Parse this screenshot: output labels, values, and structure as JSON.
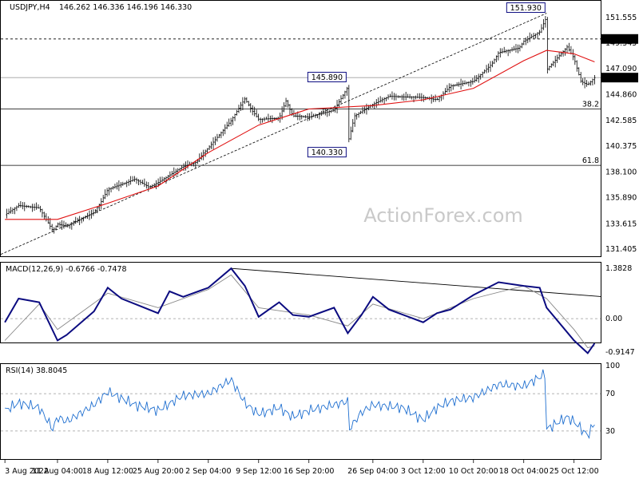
{
  "header": {
    "symbol": "USDJPY,H4",
    "ohlc": "146.262 146.336 146.196 146.330"
  },
  "watermark": "ActionForex.com",
  "colors": {
    "candle": "#000000",
    "ma": "#e01010",
    "macd_line": "#0b0b80",
    "macd_signal": "#888888",
    "rsi": "#1f6fd0",
    "trendline": "#000000",
    "price_badge": "#000000",
    "label_box_border": "#0b0b80"
  },
  "chart_data": [
    {
      "type": "candlestick",
      "title": "USDJPY,H4",
      "y_ticks": [
        "151.555",
        "149.345",
        "147.090",
        "144.860",
        "142.585",
        "140.375",
        "138.100",
        "135.890",
        "133.615",
        "131.405"
      ],
      "y_range": [
        131.0,
        152.8
      ],
      "x_ticks": [
        "3 Aug 2022",
        "11 Aug 04:00",
        "18 Aug 12:00",
        "25 Aug 20:00",
        "2 Sep 04:00",
        "9 Sep 12:00",
        "16 Sep 20:00",
        "26 Sep 04:00",
        "3 Oct 12:00",
        "10 Oct 20:00",
        "18 Oct 04:00",
        "25 Oct 12:00"
      ],
      "approx_close_path": [
        [
          "3 Aug 2022",
          134.4
        ],
        [
          "5 Aug",
          135.2
        ],
        [
          "8 Aug",
          135.0
        ],
        [
          "10 Aug",
          133.0
        ],
        [
          "11 Aug 04:00",
          133.6
        ],
        [
          "12 Aug",
          133.4
        ],
        [
          "16 Aug",
          134.6
        ],
        [
          "17 Aug",
          135.5
        ],
        [
          "18 Aug 12:00",
          136.6
        ],
        [
          "22 Aug",
          137.5
        ],
        [
          "24 Aug",
          136.8
        ],
        [
          "25 Aug 20:00",
          137.2
        ],
        [
          "29 Aug",
          138.6
        ],
        [
          "31 Aug",
          139.0
        ],
        [
          "1 Sep",
          139.8
        ],
        [
          "2 Sep 04:00",
          140.2
        ],
        [
          "5 Sep",
          142.6
        ],
        [
          "7 Sep",
          144.5
        ],
        [
          "8 Sep",
          143.5
        ],
        [
          "9 Sep 12:00",
          142.7
        ],
        [
          "12 Sep",
          142.8
        ],
        [
          "13 Sep",
          144.3
        ],
        [
          "14 Sep",
          143.0
        ],
        [
          "16 Sep 20:00",
          142.9
        ],
        [
          "20 Sep",
          143.5
        ],
        [
          "22 Sep",
          145.5
        ],
        [
          "22 Sep 12:00",
          140.6
        ],
        [
          "23 Sep",
          143.0
        ],
        [
          "26 Sep 04:00",
          144.0
        ],
        [
          "28 Sep",
          144.7
        ],
        [
          "3 Oct 12:00",
          144.6
        ],
        [
          "5 Oct",
          144.4
        ],
        [
          "6 Oct",
          145.0
        ],
        [
          "7 Oct",
          145.6
        ],
        [
          "10 Oct 20:00",
          146.0
        ],
        [
          "13 Oct",
          147.5
        ],
        [
          "14 Oct",
          148.5
        ],
        [
          "17 Oct",
          148.9
        ],
        [
          "18 Oct 04:00",
          149.5
        ],
        [
          "20 Oct",
          150.3
        ],
        [
          "21 Oct",
          151.6
        ],
        [
          "21 Oct 12:00",
          147.0
        ],
        [
          "24 Oct",
          149.0
        ],
        [
          "25 Oct 12:00",
          148.0
        ],
        [
          "26 Oct",
          146.0
        ],
        [
          "27 Oct",
          145.7
        ],
        [
          "28 Oct",
          146.33
        ]
      ],
      "moving_average_path": [
        [
          "3 Aug 2022",
          134.0
        ],
        [
          "11 Aug 04:00",
          134.0
        ],
        [
          "18 Aug 12:00",
          135.4
        ],
        [
          "25 Aug 20:00",
          136.9
        ],
        [
          "2 Sep 04:00",
          139.8
        ],
        [
          "9 Sep 12:00",
          142.2
        ],
        [
          "16 Sep 20:00",
          143.6
        ],
        [
          "26 Sep 04:00",
          143.9
        ],
        [
          "3 Oct 12:00",
          144.4
        ],
        [
          "10 Oct 20:00",
          145.4
        ],
        [
          "18 Oct 04:00",
          147.8
        ],
        [
          "21 Oct",
          148.7
        ],
        [
          "25 Oct 12:00",
          148.4
        ],
        [
          "28 Oct",
          147.7
        ]
      ],
      "horizontal_levels": [
        {
          "value": 149.69,
          "style": "dashed",
          "label": "149.690"
        },
        {
          "value": 146.33,
          "style": "solid-gray",
          "label": "146.330"
        },
        {
          "value": 143.6,
          "style": "solid",
          "label": "38.2"
        },
        {
          "value": 138.7,
          "style": "solid",
          "label": "61.8"
        }
      ],
      "annotations": [
        {
          "label": "151.930",
          "at": "21 Oct",
          "value": 151.93
        },
        {
          "label": "145.890",
          "at": "22 Sep",
          "value": 145.89
        },
        {
          "label": "140.330",
          "at": "22 Sep 12:00",
          "value": 140.33
        }
      ],
      "trendline": [
        [
          "25 Aug 20:00",
          137.0
        ],
        [
          "21 Oct",
          151.93
        ]
      ]
    },
    {
      "type": "line",
      "title": "MACD(12,26,9) -0.6766 -0.7478",
      "y_ticks": [
        "1.3828",
        "0.00",
        "-0.9147"
      ],
      "y_range": [
        -1.05,
        1.45
      ],
      "series": [
        {
          "name": "MACD",
          "values": [
            [
              "3 Aug 2022",
              -0.1
            ],
            [
              "5 Aug",
              0.55
            ],
            [
              "8 Aug",
              0.45
            ],
            [
              "11 Aug 04:00",
              -0.6
            ],
            [
              "12 Aug",
              -0.45
            ],
            [
              "16 Aug",
              0.2
            ],
            [
              "18 Aug 12:00",
              0.85
            ],
            [
              "20 Aug",
              0.55
            ],
            [
              "25 Aug 20:00",
              0.15
            ],
            [
              "27 Aug",
              0.75
            ],
            [
              "29 Aug",
              0.6
            ],
            [
              "2 Sep 04:00",
              0.85
            ],
            [
              "5 Sep",
              1.38
            ],
            [
              "7 Sep",
              0.9
            ],
            [
              "9 Sep 12:00",
              0.05
            ],
            [
              "12 Sep",
              0.45
            ],
            [
              "14 Sep",
              0.1
            ],
            [
              "16 Sep 20:00",
              0.05
            ],
            [
              "20 Sep",
              0.3
            ],
            [
              "22 Sep 12:00",
              -0.4
            ],
            [
              "24 Sep",
              0.1
            ],
            [
              "26 Sep 04:00",
              0.6
            ],
            [
              "28 Sep",
              0.25
            ],
            [
              "3 Oct 12:00",
              -0.1
            ],
            [
              "5 Oct",
              0.15
            ],
            [
              "7 Oct",
              0.25
            ],
            [
              "10 Oct 20:00",
              0.65
            ],
            [
              "14 Oct",
              1.0
            ],
            [
              "18 Oct 04:00",
              0.9
            ],
            [
              "20 Oct",
              0.85
            ],
            [
              "21 Oct 12:00",
              0.3
            ],
            [
              "25 Oct 12:00",
              -0.6
            ],
            [
              "27 Oct",
              -0.95
            ],
            [
              "28 Oct",
              -0.68
            ]
          ]
        },
        {
          "name": "Signal",
          "values": [
            [
              "3 Aug 2022",
              -0.6
            ],
            [
              "8 Aug",
              0.4
            ],
            [
              "11 Aug 04:00",
              -0.3
            ],
            [
              "18 Aug 12:00",
              0.7
            ],
            [
              "25 Aug 20:00",
              0.3
            ],
            [
              "2 Sep 04:00",
              0.8
            ],
            [
              "5 Sep",
              1.2
            ],
            [
              "9 Sep 12:00",
              0.3
            ],
            [
              "16 Sep 20:00",
              0.1
            ],
            [
              "22 Sep 12:00",
              -0.2
            ],
            [
              "26 Sep 04:00",
              0.4
            ],
            [
              "3 Oct 12:00",
              0.0
            ],
            [
              "10 Oct 20:00",
              0.55
            ],
            [
              "18 Oct 04:00",
              0.9
            ],
            [
              "21 Oct 12:00",
              0.55
            ],
            [
              "25 Oct 12:00",
              -0.3
            ],
            [
              "27 Oct",
              -0.8
            ],
            [
              "28 Oct",
              -0.75
            ]
          ]
        }
      ],
      "trendline": [
        [
          "5 Sep",
          1.38
        ],
        [
          "28 Oct",
          0.62
        ]
      ]
    },
    {
      "type": "line",
      "title": "RSI(14) 38.8045",
      "y_ticks": [
        "100",
        "70",
        "30"
      ],
      "y_range": [
        0,
        100
      ],
      "levels": [
        70,
        30
      ],
      "series": [
        {
          "name": "RSI(14)",
          "values": [
            [
              "3 Aug 2022",
              52
            ],
            [
              "5 Aug",
              60
            ],
            [
              "8 Aug",
              55
            ],
            [
              "10 Aug",
              32
            ],
            [
              "11 Aug 04:00",
              45
            ],
            [
              "12 Aug",
              40
            ],
            [
              "16 Aug",
              58
            ],
            [
              "18 Aug 12:00",
              72
            ],
            [
              "22 Aug",
              58
            ],
            [
              "25 Aug 20:00",
              52
            ],
            [
              "29 Aug",
              68
            ],
            [
              "2 Sep 04:00",
              70
            ],
            [
              "5 Sep",
              85
            ],
            [
              "7 Sep",
              60
            ],
            [
              "9 Sep 12:00",
              48
            ],
            [
              "12 Sep",
              55
            ],
            [
              "14 Sep",
              45
            ],
            [
              "16 Sep 20:00",
              52
            ],
            [
              "20 Sep",
              58
            ],
            [
              "22 Sep",
              62
            ],
            [
              "22 Sep 12:00",
              30
            ],
            [
              "24 Sep",
              50
            ],
            [
              "26 Sep 04:00",
              58
            ],
            [
              "30 Sep",
              55
            ],
            [
              "3 Oct 12:00",
              42
            ],
            [
              "5 Oct",
              55
            ],
            [
              "7 Oct",
              62
            ],
            [
              "10 Oct 20:00",
              66
            ],
            [
              "14 Oct",
              80
            ],
            [
              "18 Oct 04:00",
              78
            ],
            [
              "21 Oct",
              92
            ],
            [
              "21 Oct 12:00",
              32
            ],
            [
              "24 Oct",
              45
            ],
            [
              "25 Oct 12:00",
              40
            ],
            [
              "27 Oct",
              25
            ],
            [
              "28 Oct",
              38.8
            ]
          ]
        }
      ]
    }
  ]
}
